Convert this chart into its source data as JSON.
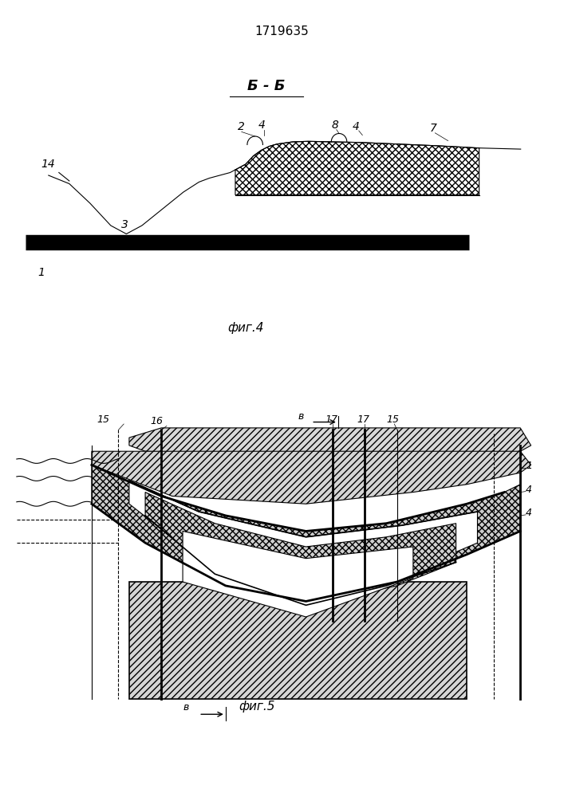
{
  "patent_number": "1719635",
  "fig4_label": "фиг.4",
  "fig5_label": "фиг.5",
  "section_bb": "Б - Б",
  "bg_color": "#ffffff",
  "line_color": "#000000"
}
